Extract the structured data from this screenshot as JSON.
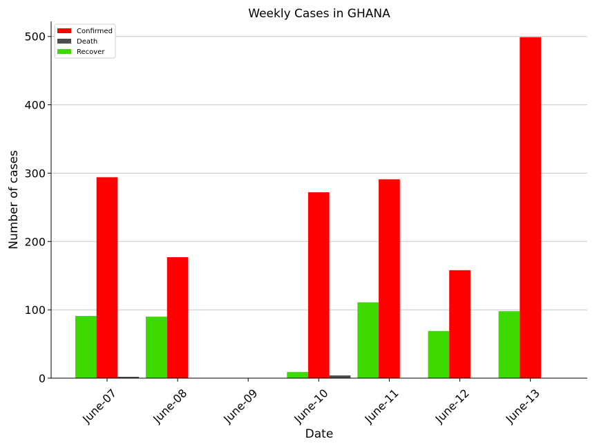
{
  "chart_data": {
    "type": "bar",
    "title": "Weekly Cases in GHANA",
    "xlabel": "Date",
    "ylabel": "Number of cases",
    "categories": [
      "June-07",
      "June-08",
      "June-09",
      "June-10",
      "June-11",
      "June-12",
      "June-13"
    ],
    "series": [
      {
        "name": "Recover",
        "color": "#3dd900",
        "values": [
          91,
          90,
          0,
          9,
          111,
          69,
          98
        ]
      },
      {
        "name": "Confirmed",
        "color": "#ff0000",
        "values": [
          294,
          177,
          0,
          272,
          291,
          158,
          499
        ]
      },
      {
        "name": "Death",
        "color": "#4d4d4d",
        "values": [
          2,
          0,
          0,
          4,
          0,
          0,
          0
        ]
      }
    ],
    "legend": {
      "placement": "top-left",
      "order": [
        "Confirmed",
        "Death",
        "Recover"
      ]
    },
    "ylim": [
      0,
      522
    ],
    "yticks": [
      0,
      100,
      200,
      300,
      400,
      500
    ],
    "grid": "y",
    "xtick_rotation": 45
  }
}
